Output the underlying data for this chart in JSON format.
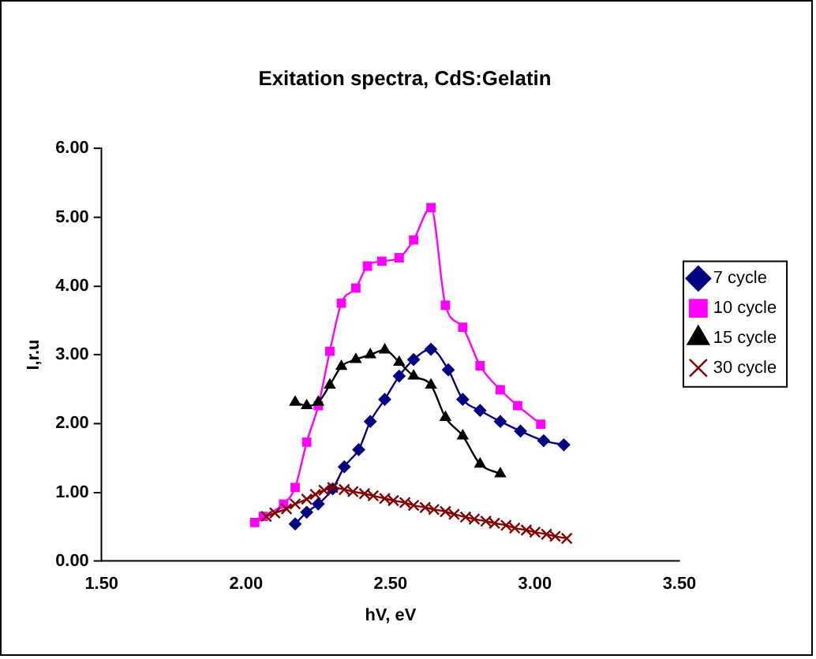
{
  "chart_data": {
    "type": "line",
    "title": "Exitation spectra, CdS:Gelatin",
    "xlabel": "hV, eV",
    "ylabel": "I,r.u",
    "xlim": [
      1.5,
      3.5
    ],
    "xticks": [
      {
        "value": 1.5,
        "label": "1.50"
      },
      {
        "value": 2,
        "label": "2.00"
      },
      {
        "value": 2.5,
        "label": "2.50"
      },
      {
        "value": 3,
        "label": "3.00"
      },
      {
        "value": 3.5,
        "label": "3.50"
      }
    ],
    "ylim": [
      0,
      6
    ],
    "yticks": [
      {
        "value": 0,
        "label": "0.00"
      },
      {
        "value": 1,
        "label": "1.00"
      },
      {
        "value": 2,
        "label": "2.00"
      },
      {
        "value": 3,
        "label": "3.00"
      },
      {
        "value": 4,
        "label": "4.00"
      },
      {
        "value": 5,
        "label": "5.00"
      },
      {
        "value": 6,
        "label": "6.00"
      }
    ],
    "grid": false,
    "legend": "right",
    "line_style": "solid",
    "series": [
      {
        "name": "7 cycle",
        "color": "#000080",
        "marker": "diamond",
        "x": [
          2.17,
          2.21,
          2.25,
          2.3,
          2.34,
          2.39,
          2.43,
          2.48,
          2.53,
          2.58,
          2.64,
          2.7,
          2.75,
          2.81,
          2.88,
          2.95,
          3.03,
          3.1
        ],
        "values": [
          0.54,
          0.71,
          0.83,
          1.05,
          1.37,
          1.62,
          2.03,
          2.35,
          2.69,
          2.93,
          3.08,
          2.78,
          2.35,
          2.19,
          2.03,
          1.89,
          1.75,
          1.69
        ]
      },
      {
        "name": "10 cycle",
        "color": "#ff00ff",
        "marker": "square",
        "x": [
          2.03,
          2.06,
          2.13,
          2.17,
          2.21,
          2.25,
          2.29,
          2.33,
          2.38,
          2.42,
          2.47,
          2.53,
          2.58,
          2.64,
          2.69,
          2.75,
          2.81,
          2.88,
          2.94,
          3.02
        ],
        "values": [
          0.56,
          0.65,
          0.83,
          1.07,
          1.73,
          2.26,
          3.05,
          3.75,
          3.97,
          4.29,
          4.36,
          4.41,
          4.67,
          5.14,
          3.72,
          3.4,
          2.84,
          2.49,
          2.26,
          1.99
        ]
      },
      {
        "name": "15 cycle",
        "color": "#000000",
        "marker": "triangle",
        "x": [
          2.17,
          2.21,
          2.25,
          2.29,
          2.33,
          2.38,
          2.43,
          2.48,
          2.53,
          2.58,
          2.64,
          2.69,
          2.75,
          2.81,
          2.88
        ],
        "values": [
          2.31,
          2.26,
          2.31,
          2.56,
          2.83,
          2.93,
          3.0,
          3.07,
          2.89,
          2.69,
          2.56,
          2.09,
          1.82,
          1.41,
          1.27
        ]
      },
      {
        "name": "30 cycle",
        "color": "#800000",
        "marker": "cross",
        "x": [
          2.07,
          2.1,
          2.14,
          2.17,
          2.21,
          2.24,
          2.27,
          2.3,
          2.34,
          2.37,
          2.41,
          2.44,
          2.48,
          2.51,
          2.55,
          2.58,
          2.62,
          2.65,
          2.69,
          2.72,
          2.76,
          2.79,
          2.83,
          2.86,
          2.9,
          2.93,
          2.97,
          3.0,
          3.04,
          3.07,
          3.11
        ],
        "values": [
          0.65,
          0.7,
          0.76,
          0.83,
          0.9,
          0.97,
          1.03,
          1.07,
          1.04,
          1.01,
          0.98,
          0.95,
          0.91,
          0.88,
          0.85,
          0.81,
          0.78,
          0.75,
          0.72,
          0.68,
          0.64,
          0.61,
          0.58,
          0.55,
          0.52,
          0.48,
          0.45,
          0.42,
          0.39,
          0.36,
          0.33
        ]
      }
    ]
  }
}
